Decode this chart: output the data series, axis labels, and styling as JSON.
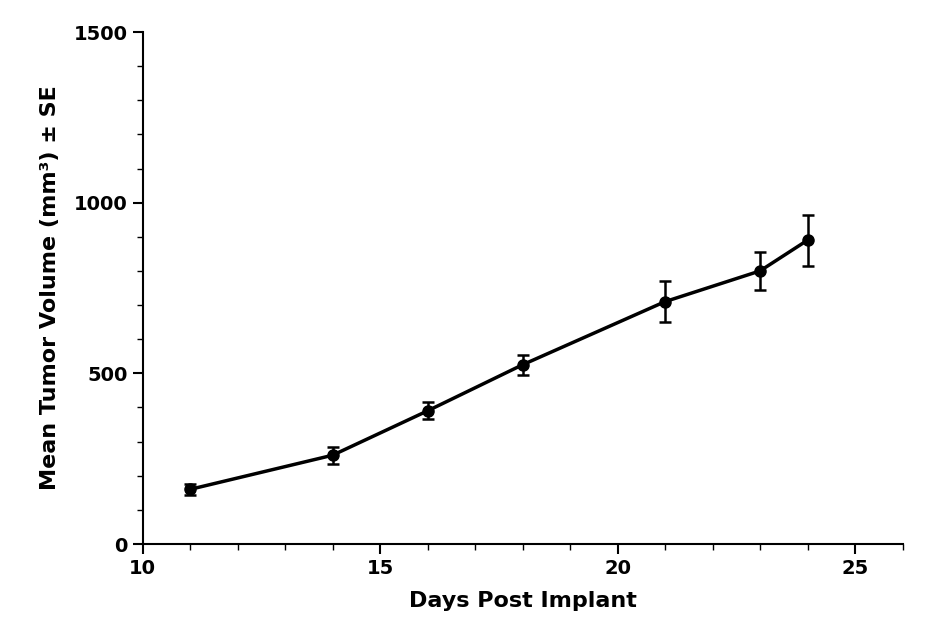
{
  "x": [
    11,
    14,
    16,
    18,
    21,
    23,
    24
  ],
  "y": [
    160,
    260,
    390,
    525,
    710,
    800,
    890
  ],
  "yerr": [
    15,
    25,
    25,
    30,
    60,
    55,
    75
  ],
  "xlabel": "Days Post Implant",
  "ylabel": "Mean Tumor Volume (mm³) ± SE",
  "xlim": [
    10,
    26
  ],
  "ylim": [
    0,
    1500
  ],
  "xticks": [
    10,
    15,
    20,
    25
  ],
  "yticks": [
    0,
    500,
    1000,
    1500
  ],
  "line_color": "#000000",
  "marker_color": "#000000",
  "background_color": "#ffffff",
  "linewidth": 2.5,
  "markersize": 8,
  "capsize": 4,
  "axis_label_fontsize": 16,
  "tick_fontsize": 14
}
